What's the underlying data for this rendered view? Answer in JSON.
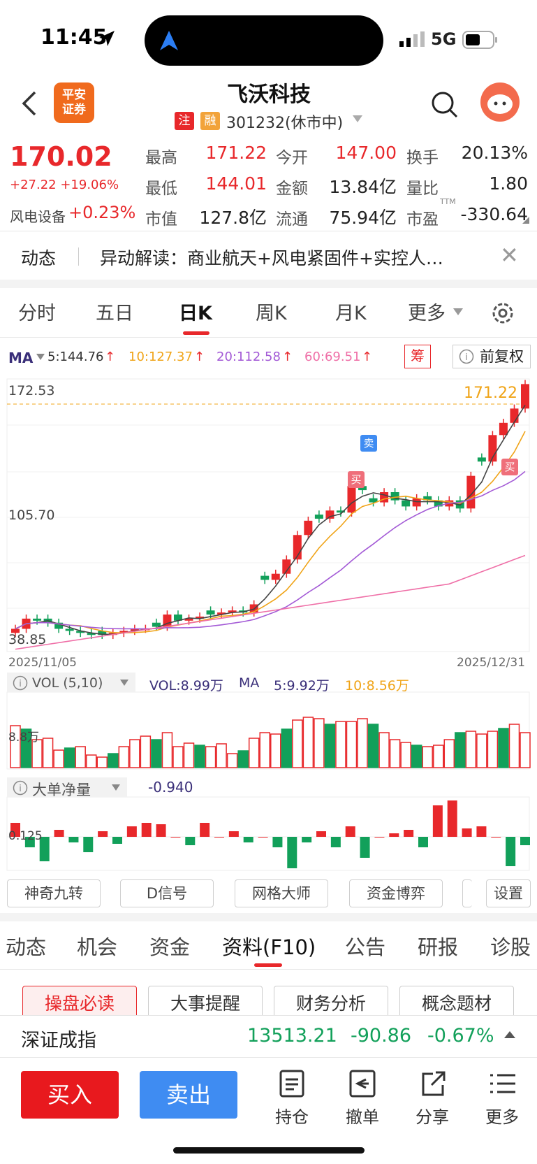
{
  "status": {
    "time": "11:45",
    "network": "5G"
  },
  "header": {
    "logo_text": "平安\n证券",
    "stock_name": "飞沃科技",
    "tag_zhu": "注",
    "tag_rong": "融",
    "code_market": "301232(休市中)"
  },
  "quote": {
    "price": "170.02",
    "change": "+27.22 +19.06%",
    "sector_name": "风电设备",
    "sector_change": "+0.23%",
    "labels": [
      "最高",
      "今开",
      "换手",
      "最低",
      "金额",
      "量比",
      "市值",
      "流通",
      "市盈TTM"
    ],
    "high": "171.22",
    "open": "147.00",
    "turnover": "20.13%",
    "low": "144.01",
    "amount": "13.84亿",
    "vol_ratio": "1.80",
    "market_cap": "127.8亿",
    "float_cap": "75.94亿",
    "pe": "-330.64",
    "pe_label": "市盈",
    "pe_sup": "TTM"
  },
  "news": {
    "label": "动态",
    "text": "异动解读：商业航天+风电紧固件+实控人…"
  },
  "k_tabs": [
    "分时",
    "五日",
    "日K",
    "周K",
    "月K",
    "更多"
  ],
  "ma": {
    "label": "MA",
    "ma5": "5:144.76",
    "ma10": "10:127.37",
    "ma20": "20:112.58",
    "ma60": "60:69.51",
    "chou": "筹",
    "fuquan": "前复权"
  },
  "kchart": {
    "y_top": "172.53",
    "y_mid": "105.70",
    "y_bottom": "38.85",
    "high_label": "171.22",
    "date_start": "2025/11/05",
    "date_end": "2025/12/31",
    "sell_badge": "卖",
    "buy_badge": "买"
  },
  "vol": {
    "title": "VOL (5,10)",
    "vol": "VOL:8.99万",
    "ma_label": "MA",
    "ma5": "5:9.92万",
    "ma10": "10:8.56万",
    "axis": "8.8万"
  },
  "bigorder": {
    "title": "大单净量",
    "value": "-0.940",
    "axis": "0.125"
  },
  "tools": [
    "神奇九转",
    "D信号",
    "网格大师",
    "资金博弈",
    "设置"
  ],
  "f_tabs": [
    "动态",
    "机会",
    "资金",
    "资料(F10)",
    "公告",
    "研报",
    "诊股"
  ],
  "sub_buttons": [
    "操盘必读",
    "大事提醒",
    "财务分析",
    "概念题材"
  ],
  "index": {
    "name": "深证成指",
    "value": "13513.21",
    "change": "-90.86",
    "pct": "-0.67%"
  },
  "actions": {
    "buy": "买入",
    "sell": "卖出",
    "hold": "持仓",
    "cancel": "撤单",
    "share": "分享",
    "more": "更多"
  },
  "colors": {
    "up": "#e8282b",
    "down": "#12a05a",
    "sell_btn": "#3f8cf2"
  }
}
